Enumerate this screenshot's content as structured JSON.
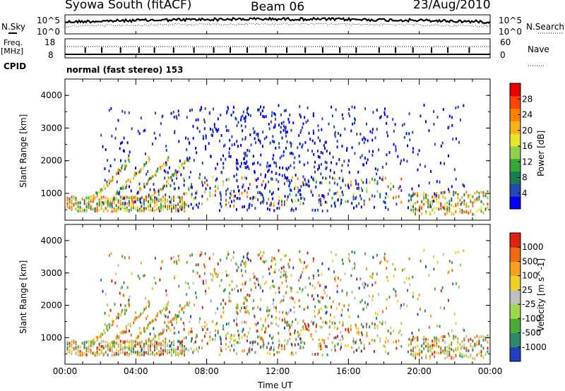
{
  "header": {
    "title": "Syowa South (fitACF)",
    "beam": "Beam 06",
    "date": "23/Aug/2010"
  },
  "noise_panel": {
    "left_label": "N.Sky",
    "right_label": "N.Search",
    "ticks": [
      "10^5",
      "10^0"
    ],
    "right_ticks": [
      "10^5",
      "10^0"
    ]
  },
  "freq_panel": {
    "left_label_1": "Freq.",
    "left_label_2": "[MHz]",
    "right_label": "Nave",
    "left_ticks": [
      "18",
      "8"
    ],
    "right_ticks": [
      "60",
      "0"
    ]
  },
  "cpid": {
    "label": "CPID",
    "value": "normal (fast stereo) 153"
  },
  "chart_data": [
    {
      "type": "heatmap",
      "quantity": "Power",
      "ylabel": "Slant Range [km]",
      "xlabel": "",
      "ylim": [
        180,
        4500
      ],
      "y_ticks": [
        1000,
        2000,
        3000,
        4000
      ],
      "colorbar_label": "Power [dB]",
      "colorbar_ticks": [
        "28",
        "24",
        "20",
        "16",
        "12",
        "8",
        "4"
      ],
      "colorbar_colors": [
        "#0000ff",
        "#2547b0",
        "#1a7d52",
        "#39a63a",
        "#8fd14b",
        "#e6e630",
        "#f5b319",
        "#ff8000",
        "#ff4500",
        "#e60000"
      ]
    },
    {
      "type": "heatmap",
      "quantity": "Velocity",
      "ylabel": "Slant Range [km]",
      "xlabel": "Time UT",
      "ylim": [
        180,
        4500
      ],
      "y_ticks": [
        1000,
        2000,
        3000,
        4000
      ],
      "x_ticks": [
        "00:00",
        "04:00",
        "08:00",
        "12:00",
        "16:00",
        "20:00",
        "00:00"
      ],
      "colorbar_label": "Velocity [m s^-1]",
      "colorbar_ticks": [
        "1000",
        "500",
        "100",
        "25",
        "-25",
        "-100",
        "-500",
        "-1000"
      ],
      "colorbar_colors": [
        "#2040c0",
        "#2a8a6e",
        "#4aaa3a",
        "#9fd64a",
        "#bfbfbf",
        "#f0d020",
        "#f5a020",
        "#f06a10",
        "#e02010"
      ]
    }
  ]
}
